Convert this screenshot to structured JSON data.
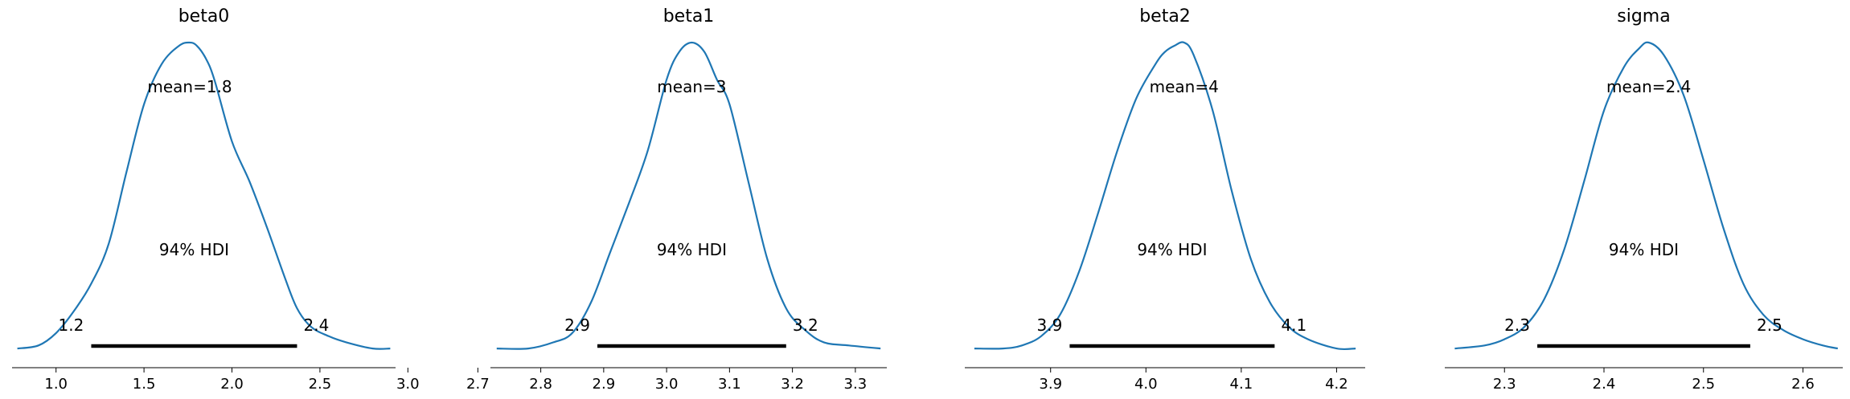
{
  "chart_data": [
    {
      "type": "area",
      "title": "beta0",
      "mean_label": "mean=1.8",
      "hdi_label": "94% HDI",
      "hdi_low": 1.2,
      "hdi_high": 2.37,
      "hdi_low_label": "1.2",
      "hdi_high_label": "2.4",
      "xlim": [
        0.75,
        2.93
      ],
      "xticks": [
        1.0,
        1.5,
        2.0,
        2.5,
        3.0
      ],
      "xtick_labels": [
        "1.0",
        "1.5",
        "2.0",
        "2.5",
        "3.0"
      ],
      "density": {
        "x": [
          0.78,
          0.9,
          1.0,
          1.1,
          1.2,
          1.3,
          1.4,
          1.5,
          1.6,
          1.7,
          1.76,
          1.8,
          1.85,
          1.9,
          2.0,
          2.1,
          2.2,
          2.3,
          2.37,
          2.45,
          2.55,
          2.65,
          2.8,
          2.9
        ],
        "y": [
          0.01,
          0.02,
          0.06,
          0.13,
          0.22,
          0.35,
          0.58,
          0.8,
          0.93,
          0.99,
          1.0,
          0.99,
          0.95,
          0.88,
          0.68,
          0.55,
          0.4,
          0.24,
          0.14,
          0.08,
          0.05,
          0.03,
          0.01,
          0.01
        ]
      }
    },
    {
      "type": "area",
      "title": "beta1",
      "mean_label": "mean=3",
      "hdi_label": "94% HDI",
      "hdi_low": 2.89,
      "hdi_high": 3.19,
      "hdi_low_label": "2.9",
      "hdi_high_label": "3.2",
      "xlim": [
        2.72,
        3.35
      ],
      "xticks": [
        2.7,
        2.8,
        2.9,
        3.0,
        3.1,
        3.2,
        3.3
      ],
      "xtick_labels": [
        "2.7",
        "2.8",
        "2.9",
        "3.0",
        "3.1",
        "3.2",
        "3.3"
      ],
      "density": {
        "x": [
          2.73,
          2.78,
          2.82,
          2.85,
          2.88,
          2.91,
          2.94,
          2.97,
          3.0,
          3.02,
          3.04,
          3.06,
          3.08,
          3.1,
          3.13,
          3.16,
          3.19,
          3.22,
          3.25,
          3.29,
          3.34
        ],
        "y": [
          0.01,
          0.01,
          0.03,
          0.06,
          0.16,
          0.32,
          0.48,
          0.65,
          0.88,
          0.97,
          1.0,
          0.97,
          0.88,
          0.8,
          0.55,
          0.3,
          0.14,
          0.07,
          0.03,
          0.02,
          0.01
        ]
      }
    },
    {
      "type": "area",
      "title": "beta2",
      "mean_label": "mean=4",
      "hdi_label": "94% HDI",
      "hdi_low": 3.92,
      "hdi_high": 4.135,
      "hdi_low_label": "3.9",
      "hdi_high_label": "4.1",
      "xlim": [
        3.81,
        4.23
      ],
      "xticks": [
        3.9,
        4.0,
        4.1,
        4.2
      ],
      "xtick_labels": [
        "3.9",
        "4.0",
        "4.1",
        "4.2"
      ],
      "density": {
        "x": [
          3.82,
          3.85,
          3.87,
          3.89,
          3.91,
          3.93,
          3.95,
          3.97,
          3.99,
          4.01,
          4.02,
          4.03,
          4.04,
          4.05,
          4.07,
          4.09,
          4.11,
          4.13,
          4.15,
          4.17,
          4.2,
          4.22
        ],
        "y": [
          0.01,
          0.01,
          0.02,
          0.05,
          0.12,
          0.26,
          0.45,
          0.65,
          0.82,
          0.93,
          0.97,
          0.99,
          1.0,
          0.96,
          0.78,
          0.52,
          0.3,
          0.16,
          0.08,
          0.04,
          0.01,
          0.01
        ]
      }
    },
    {
      "type": "area",
      "title": "sigma",
      "mean_label": "mean=2.4",
      "hdi_label": "94% HDI",
      "hdi_low": 2.333,
      "hdi_high": 2.547,
      "hdi_low_label": "2.3",
      "hdi_high_label": "2.5",
      "xlim": [
        2.24,
        2.64
      ],
      "xticks": [
        2.3,
        2.4,
        2.5,
        2.6
      ],
      "xtick_labels": [
        "2.3",
        "2.4",
        "2.5",
        "2.6"
      ],
      "density": {
        "x": [
          2.25,
          2.28,
          2.3,
          2.32,
          2.34,
          2.36,
          2.38,
          2.4,
          2.42,
          2.435,
          2.445,
          2.46,
          2.48,
          2.5,
          2.52,
          2.54,
          2.56,
          2.58,
          2.6,
          2.62,
          2.635
        ],
        "y": [
          0.01,
          0.02,
          0.04,
          0.08,
          0.17,
          0.33,
          0.55,
          0.78,
          0.92,
          0.98,
          1.0,
          0.96,
          0.83,
          0.62,
          0.4,
          0.22,
          0.12,
          0.07,
          0.04,
          0.02,
          0.01
        ]
      }
    }
  ]
}
